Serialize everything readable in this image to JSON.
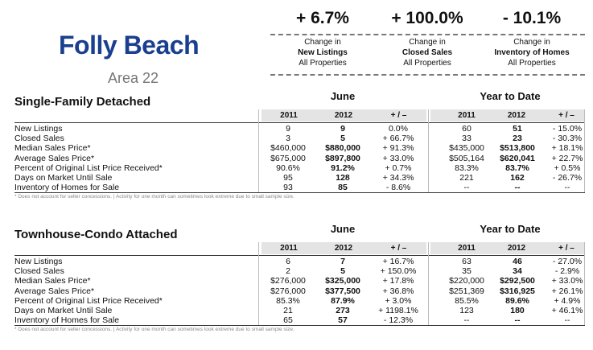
{
  "header": {
    "title": "Folly Beach",
    "subtitle": "Area 22"
  },
  "kpis": [
    {
      "value": "+ 6.7%",
      "line1": "Change in",
      "line2": "New Listings",
      "line3": "All Properties"
    },
    {
      "value": "+ 100.0%",
      "line1": "Change in",
      "line2": "Closed Sales",
      "line3": "All Properties"
    },
    {
      "value": "- 10.1%",
      "line1": "Change in",
      "line2": "Inventory of Homes",
      "line3": "All Properties"
    }
  ],
  "col_headers": {
    "y1": "2011",
    "y2": "2012",
    "chg": "+ / –",
    "june": "June",
    "ytd": "Year to Date"
  },
  "sections": [
    {
      "title": "Single-Family Detached",
      "rows": [
        {
          "label": "New Listings",
          "j11": "9",
          "j12": "9",
          "jc": "0.0%",
          "y11": "60",
          "y12": "51",
          "yc": "- 15.0%"
        },
        {
          "label": "Closed Sales",
          "j11": "3",
          "j12": "5",
          "jc": "+ 66.7%",
          "y11": "33",
          "y12": "23",
          "yc": "- 30.3%"
        },
        {
          "label": "Median Sales Price*",
          "j11": "$460,000",
          "j12": "$880,000",
          "jc": "+ 91.3%",
          "y11": "$435,000",
          "y12": "$513,800",
          "yc": "+ 18.1%"
        },
        {
          "label": "Average Sales Price*",
          "j11": "$675,000",
          "j12": "$897,800",
          "jc": "+ 33.0%",
          "y11": "$505,164",
          "y12": "$620,041",
          "yc": "+ 22.7%"
        },
        {
          "label": "Percent of Original List Price Received*",
          "j11": "90.6%",
          "j12": "91.2%",
          "jc": "+ 0.7%",
          "y11": "83.3%",
          "y12": "83.7%",
          "yc": "+ 0.5%"
        },
        {
          "label": "Days on Market Until Sale",
          "j11": "95",
          "j12": "128",
          "jc": "+ 34.3%",
          "y11": "221",
          "y12": "162",
          "yc": "- 26.7%"
        },
        {
          "label": "Inventory of Homes for Sale",
          "j11": "93",
          "j12": "85",
          "jc": "- 8.6%",
          "y11": "--",
          "y12": "--",
          "yc": "--"
        }
      ],
      "note": "* Does not account for seller concessions.  |  Activity for one month can sometimes look extreme due to small sample size."
    },
    {
      "title": "Townhouse-Condo Attached",
      "rows": [
        {
          "label": "New Listings",
          "j11": "6",
          "j12": "7",
          "jc": "+ 16.7%",
          "y11": "63",
          "y12": "46",
          "yc": "- 27.0%"
        },
        {
          "label": "Closed Sales",
          "j11": "2",
          "j12": "5",
          "jc": "+ 150.0%",
          "y11": "35",
          "y12": "34",
          "yc": "- 2.9%"
        },
        {
          "label": "Median Sales Price*",
          "j11": "$276,000",
          "j12": "$325,000",
          "jc": "+ 17.8%",
          "y11": "$220,000",
          "y12": "$292,500",
          "yc": "+ 33.0%"
        },
        {
          "label": "Average Sales Price*",
          "j11": "$276,000",
          "j12": "$377,500",
          "jc": "+ 36.8%",
          "y11": "$251,369",
          "y12": "$316,925",
          "yc": "+ 26.1%"
        },
        {
          "label": "Percent of Original List Price Received*",
          "j11": "85.3%",
          "j12": "87.9%",
          "jc": "+ 3.0%",
          "y11": "85.5%",
          "y12": "89.6%",
          "yc": "+ 4.9%"
        },
        {
          "label": "Days on Market Until Sale",
          "j11": "21",
          "j12": "273",
          "jc": "+ 1198.1%",
          "y11": "123",
          "y12": "180",
          "yc": "+ 46.1%"
        },
        {
          "label": "Inventory of Homes for Sale",
          "j11": "65",
          "j12": "57",
          "jc": "- 12.3%",
          "y11": "--",
          "y12": "--",
          "yc": "--"
        }
      ],
      "note": "* Does not account for seller concessions.  |  Activity for one month can sometimes look extreme due to small sample size."
    }
  ]
}
